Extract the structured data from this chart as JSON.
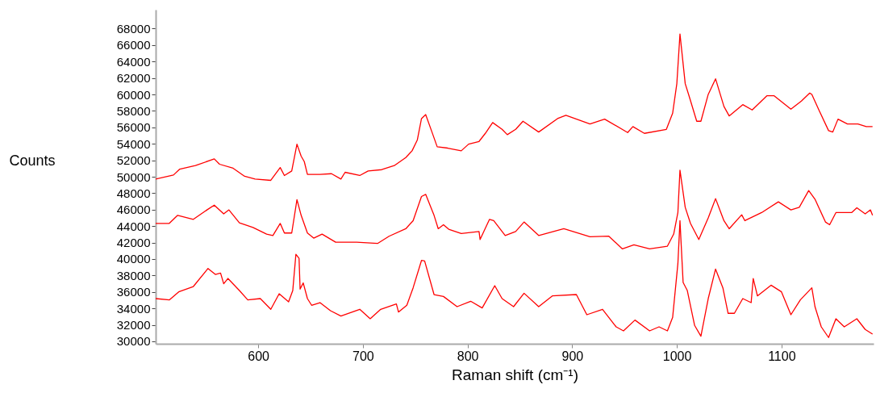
{
  "chart_data": {
    "type": "line",
    "xlabel": "Raman shift (cm⁻¹)",
    "ylabel": "Counts",
    "xlim": [
      502,
      1188
    ],
    "ylim": [
      29700,
      70300
    ],
    "xticks": [
      600,
      700,
      800,
      900,
      1000,
      1100
    ],
    "yticks": [
      30000,
      32000,
      34000,
      36000,
      38000,
      40000,
      42000,
      44000,
      46000,
      48000,
      50000,
      52000,
      54000,
      56000,
      58000,
      60000,
      62000,
      64000,
      66000,
      68000
    ],
    "grid": false,
    "marker": "none",
    "line_style": "solid",
    "series": [
      {
        "color": "#ff0000",
        "x": [
          502,
          519,
          525,
          540,
          558,
          563,
          576,
          587,
          597,
          612,
          621,
          625,
          632,
          637,
          641,
          644,
          647,
          659,
          670,
          679,
          683,
          697,
          705,
          718,
          730,
          741,
          747,
          752,
          756,
          760,
          766,
          771,
          781,
          794,
          801,
          811,
          817,
          824,
          833,
          838,
          846,
          853,
          868,
          886,
          894,
          917,
          931,
          953,
          958,
          969,
          990,
          996,
          1000,
          1003,
          1008,
          1012,
          1019,
          1023,
          1030,
          1037,
          1045,
          1050,
          1063,
          1072,
          1086,
          1093,
          1109,
          1119,
          1127,
          1129,
          1136,
          1145,
          1149,
          1154,
          1163,
          1173,
          1181,
          1187
        ],
        "values": [
          49720,
          50210,
          50930,
          51350,
          52170,
          51520,
          51030,
          50050,
          49720,
          49560,
          51120,
          50150,
          50700,
          53960,
          52500,
          51840,
          50280,
          50280,
          50370,
          49720,
          50540,
          50150,
          50700,
          50860,
          51350,
          52330,
          53150,
          54460,
          57070,
          57560,
          55430,
          53640,
          53480,
          53150,
          53960,
          54290,
          55270,
          56580,
          55760,
          55110,
          55760,
          56740,
          55430,
          57070,
          57460,
          56410,
          57000,
          55370,
          56090,
          55270,
          55760,
          57720,
          61310,
          67350,
          61310,
          59680,
          56740,
          56740,
          60010,
          61900,
          58540,
          57390,
          58760,
          58110,
          59840,
          59840,
          58210,
          59190,
          60170,
          60010,
          58050,
          55600,
          55430,
          57000,
          56410,
          56410,
          56090,
          56090
        ]
      },
      {
        "color": "#ff0000",
        "x": [
          502,
          515,
          523,
          538,
          551,
          558,
          567,
          572,
          582,
          595,
          608,
          614,
          621,
          625,
          632,
          637,
          641,
          647,
          653,
          661,
          674,
          694,
          714,
          725,
          741,
          748,
          756,
          760,
          768,
          772,
          777,
          782,
          794,
          811,
          812,
          821,
          825,
          836,
          846,
          854,
          868,
          892,
          917,
          935,
          948,
          959,
          974,
          991,
          997,
          1001,
          1003,
          1008,
          1013,
          1021,
          1030,
          1037,
          1045,
          1050,
          1062,
          1065,
          1081,
          1097,
          1109,
          1117,
          1126,
          1132,
          1142,
          1146,
          1152,
          1167,
          1172,
          1180,
          1185,
          1187
        ],
        "values": [
          44330,
          44330,
          45310,
          44820,
          45970,
          46550,
          45480,
          45970,
          44400,
          43840,
          43030,
          42860,
          44330,
          43160,
          43160,
          47210,
          45310,
          43160,
          42540,
          43030,
          42050,
          42050,
          41890,
          42770,
          43680,
          44660,
          47600,
          47860,
          45310,
          43680,
          44170,
          43620,
          43090,
          43350,
          42370,
          44820,
          44660,
          42860,
          43350,
          44500,
          42860,
          43680,
          42700,
          42770,
          41230,
          41720,
          41230,
          41560,
          43030,
          45640,
          50800,
          46290,
          44330,
          42370,
          44990,
          47340,
          44660,
          43680,
          45380,
          44660,
          45640,
          46950,
          45970,
          46290,
          48320,
          47270,
          44500,
          44170,
          45640,
          45640,
          46230,
          45480,
          45970,
          45310
        ]
      },
      {
        "color": "#ff0000",
        "x": [
          502,
          515,
          524,
          538,
          552,
          559,
          564,
          567,
          571,
          582,
          590,
          602,
          612,
          620,
          629,
          633,
          636,
          639,
          640,
          643,
          647,
          651,
          659,
          669,
          679,
          697,
          707,
          717,
          732,
          734,
          742,
          748,
          756,
          759,
          768,
          777,
          790,
          803,
          814,
          826,
          833,
          844,
          854,
          868,
          881,
          904,
          914,
          929,
          942,
          949,
          960,
          974,
          983,
          991,
          996,
          1001,
          1003,
          1006,
          1010,
          1017,
          1023,
          1030,
          1037,
          1044,
          1049,
          1055,
          1063,
          1071,
          1073,
          1077,
          1090,
          1100,
          1109,
          1118,
          1129,
          1132,
          1138,
          1145,
          1152,
          1160,
          1172,
          1180,
          1187
        ],
        "values": [
          35190,
          35030,
          36010,
          36660,
          38850,
          38130,
          38290,
          36990,
          37640,
          36170,
          35030,
          35190,
          33890,
          35780,
          34800,
          36170,
          40580,
          40090,
          36340,
          37090,
          35190,
          34380,
          34700,
          33720,
          33070,
          33890,
          32750,
          33890,
          34540,
          33560,
          34380,
          36500,
          39830,
          39760,
          35680,
          35450,
          34210,
          34870,
          34050,
          36760,
          35190,
          34210,
          35840,
          34210,
          35520,
          35680,
          33230,
          33890,
          31760,
          31270,
          32580,
          31270,
          31760,
          31270,
          32910,
          39440,
          44660,
          37150,
          36170,
          31930,
          30620,
          35190,
          38780,
          36500,
          33400,
          33400,
          35190,
          34700,
          37640,
          35520,
          36820,
          36010,
          33230,
          35030,
          36500,
          34210,
          31760,
          30460,
          32740,
          31760,
          32740,
          31440,
          30880
        ]
      }
    ]
  }
}
